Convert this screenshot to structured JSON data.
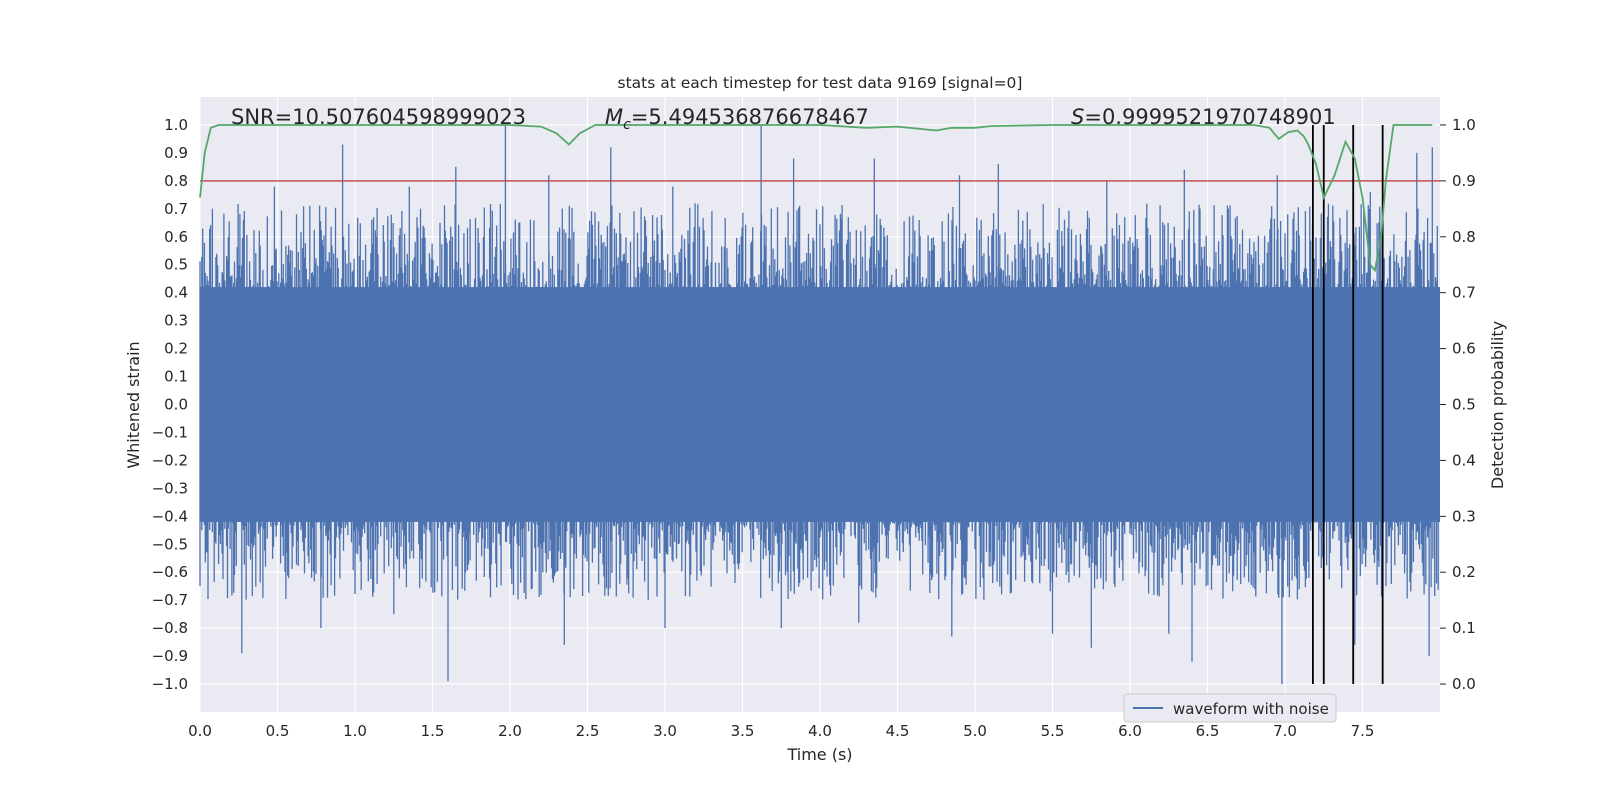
{
  "chart_data": {
    "type": "line",
    "title": "stats at each timestep for test data 9169 [signal=0]",
    "xlabel": "Time (s)",
    "ylabel": "Whitened strain",
    "y2label": "Detection probability",
    "xlim": [
      0.0,
      8.0
    ],
    "ylim": [
      -1.1,
      1.1
    ],
    "y2lim": [
      -0.05,
      1.05
    ],
    "grid": true,
    "x_ticks": [
      0.0,
      0.5,
      1.0,
      1.5,
      2.0,
      2.5,
      3.0,
      3.5,
      4.0,
      4.5,
      5.0,
      5.5,
      6.0,
      6.5,
      7.0,
      7.5
    ],
    "x_tick_labels": [
      "0.0",
      "0.5",
      "1.0",
      "1.5",
      "2.0",
      "2.5",
      "3.0",
      "3.5",
      "4.0",
      "4.5",
      "5.0",
      "5.5",
      "6.0",
      "6.5",
      "7.0",
      "7.5"
    ],
    "y_ticks": [
      1.0,
      0.9,
      0.8,
      0.7,
      0.6,
      0.5,
      0.4,
      0.3,
      0.2,
      0.1,
      0.0,
      -0.1,
      -0.2,
      -0.3,
      -0.4,
      -0.5,
      -0.6,
      -0.7,
      -0.8,
      -0.9,
      -1.0
    ],
    "y_tick_labels": [
      "1.0",
      "0.9",
      "0.8",
      "0.7",
      "0.6",
      "0.5",
      "0.4",
      "0.3",
      "0.2",
      "0.1",
      "0.0",
      "−0.1",
      "−0.2",
      "−0.3",
      "−0.4",
      "−0.5",
      "−0.6",
      "−0.7",
      "−0.8",
      "−0.9",
      "−1.0"
    ],
    "y2_ticks": [
      1.0,
      0.9,
      0.8,
      0.7,
      0.6,
      0.5,
      0.4,
      0.3,
      0.2,
      0.1,
      0.0
    ],
    "y2_tick_labels": [
      "1.0",
      "0.9",
      "0.8",
      "0.7",
      "0.6",
      "0.5",
      "0.4",
      "0.3",
      "0.2",
      "0.1",
      "0.0"
    ],
    "annotations": {
      "snr": "SNR=10.507604598999023",
      "mc_symbol": "M",
      "mc_subscript": "c",
      "mc_value": "=5.494536876678467",
      "s_symbol": "S",
      "s_value": "=0.9999521970748901"
    },
    "legend": {
      "label": "waveform with noise",
      "location": "lower-right"
    },
    "threshold": {
      "y2": 0.9,
      "color": "#c44e52"
    },
    "vertical_lines_x": [
      7.18,
      7.25,
      7.44,
      7.63
    ],
    "waveform": {
      "color": "#4c72b0",
      "band_low": -0.42,
      "band_high": 0.42,
      "peaks_pos": [
        [
          0.92,
          0.93
        ],
        [
          1.97,
          1.0
        ],
        [
          3.62,
          1.0
        ],
        [
          2.65,
          0.92
        ],
        [
          3.83,
          0.88
        ],
        [
          7.95,
          0.92
        ],
        [
          1.65,
          0.85
        ],
        [
          0.48,
          0.78
        ],
        [
          1.35,
          0.78
        ],
        [
          2.25,
          0.82
        ],
        [
          4.35,
          0.88
        ],
        [
          4.9,
          0.82
        ],
        [
          5.15,
          0.86
        ],
        [
          6.35,
          0.84
        ],
        [
          7.85,
          0.9
        ],
        [
          3.05,
          0.78
        ],
        [
          5.85,
          0.8
        ],
        [
          6.95,
          0.82
        ],
        [
          7.55,
          0.76
        ]
      ],
      "peaks_neg": [
        [
          1.6,
          -0.99
        ],
        [
          0.27,
          -0.89
        ],
        [
          2.35,
          -0.86
        ],
        [
          6.98,
          -1.0
        ],
        [
          6.4,
          -0.92
        ],
        [
          5.75,
          -0.87
        ],
        [
          7.93,
          -0.9
        ],
        [
          0.78,
          -0.8
        ],
        [
          3.0,
          -0.8
        ],
        [
          3.75,
          -0.8
        ],
        [
          4.85,
          -0.83
        ],
        [
          5.5,
          -0.82
        ],
        [
          6.25,
          -0.82
        ],
        [
          7.45,
          -0.86
        ],
        [
          1.25,
          -0.75
        ],
        [
          4.25,
          -0.78
        ]
      ]
    },
    "series": [
      {
        "name": "detection probability",
        "axis": "right",
        "color": "#55a868",
        "x": [
          0.0,
          0.03,
          0.07,
          0.12,
          0.5,
          1.0,
          1.5,
          2.0,
          2.2,
          2.3,
          2.38,
          2.45,
          2.55,
          3.0,
          3.5,
          4.0,
          4.3,
          4.5,
          4.75,
          4.85,
          5.0,
          5.1,
          5.5,
          6.0,
          6.5,
          6.8,
          6.9,
          6.96,
          7.02,
          7.08,
          7.12,
          7.15,
          7.2,
          7.25,
          7.32,
          7.39,
          7.45,
          7.5,
          7.55,
          7.58,
          7.62,
          7.65,
          7.7,
          7.8,
          7.9,
          7.95
        ],
        "y": [
          0.87,
          0.95,
          0.995,
          1.0,
          1.0,
          1.0,
          1.0,
          1.0,
          0.997,
          0.985,
          0.965,
          0.985,
          1.0,
          1.0,
          1.0,
          1.0,
          0.995,
          0.997,
          0.99,
          0.995,
          0.995,
          0.998,
          1.0,
          1.0,
          1.0,
          1.0,
          0.995,
          0.975,
          0.987,
          0.99,
          0.98,
          0.965,
          0.93,
          0.87,
          0.91,
          0.97,
          0.94,
          0.87,
          0.75,
          0.74,
          0.8,
          0.9,
          1.0,
          1.0,
          1.0,
          1.0
        ]
      }
    ]
  }
}
